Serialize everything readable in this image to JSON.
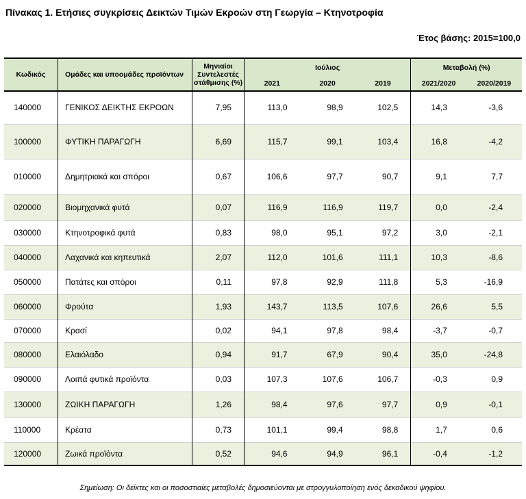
{
  "title": "Πίνακας 1. Ετήσιες συγκρίσεις Δεικτών Τιμών Εκροών στη Γεωργία – Κτηνοτροφία",
  "base_year": "Έτος βάσης: 2015=100,0",
  "columns": {
    "code": "Κωδικός",
    "groups": "Ομάδες και υποομάδες προϊόντων",
    "weights": "Μηνιαίοι Συντελεστές στάθμισης (%)",
    "july": "Ιούλιος",
    "change": "Μεταβολή (%)",
    "y2021": "2021",
    "y2020": "2020",
    "y2019": "2019",
    "c2021_2020": "2021/2020",
    "c2020_2019": "2020/2019"
  },
  "rows": [
    {
      "code": "140000",
      "name": "ΓΕΝΙΚΟΣ ΔΕΙΚΤΗΣ ΕΚΡΟΩΝ",
      "weight": "7,95",
      "y2021": "113,0",
      "y2020": "98,9",
      "y2019": "102,5",
      "chg1": "14,3",
      "chg2": "-3,6"
    },
    {
      "code": "100000",
      "name": "ΦΥΤΙΚΗ ΠΑΡΑΓΩΓΗ",
      "weight": "6,69",
      "y2021": "115,7",
      "y2020": "99,1",
      "y2019": "103,4",
      "chg1": "16,8",
      "chg2": "-4,2"
    },
    {
      "code": "010000",
      "name": "Δημητριακά και σπόροι",
      "weight": "0,67",
      "y2021": "106,6",
      "y2020": "97,7",
      "y2019": "90,7",
      "chg1": "9,1",
      "chg2": "7,7"
    },
    {
      "code": "020000",
      "name": "Βιομηχανικά φυτά",
      "weight": "0,07",
      "y2021": "116,9",
      "y2020": "116,9",
      "y2019": "119,7",
      "chg1": "0,0",
      "chg2": "-2,4"
    },
    {
      "code": "030000",
      "name": "Κτηνοτροφικά φυτά",
      "weight": "0,83",
      "y2021": "98,0",
      "y2020": "95,1",
      "y2019": "97,2",
      "chg1": "3,0",
      "chg2": "-2,1"
    },
    {
      "code": "040000",
      "name": "Λαχανικά και κηπευτικά",
      "weight": "2,07",
      "y2021": "112,0",
      "y2020": "101,6",
      "y2019": "111,1",
      "chg1": "10,3",
      "chg2": "-8,6"
    },
    {
      "code": "050000",
      "name": "Πατάτες και σπόροι",
      "weight": "0,11",
      "y2021": "97,8",
      "y2020": "92,9",
      "y2019": "111,8",
      "chg1": "5,3",
      "chg2": "-16,9"
    },
    {
      "code": "060000",
      "name": "Φρούτα",
      "weight": "1,93",
      "y2021": "143,7",
      "y2020": "113,5",
      "y2019": "107,6",
      "chg1": "26,6",
      "chg2": "5,5"
    },
    {
      "code": "070000",
      "name": "Κρασί",
      "weight": "0,02",
      "y2021": "94,1",
      "y2020": "97,8",
      "y2019": "98,4",
      "chg1": "-3,7",
      "chg2": "-0,7"
    },
    {
      "code": "080000",
      "name": "Ελαιόλαδο",
      "weight": "0,94",
      "y2021": "91,7",
      "y2020": "67,9",
      "y2019": "90,4",
      "chg1": "35,0",
      "chg2": "-24,8"
    },
    {
      "code": "090000",
      "name": "Λοιπά φυτικά προϊόντα",
      "weight": "0,03",
      "y2021": "107,3",
      "y2020": "107,6",
      "y2019": "106,7",
      "chg1": "-0,3",
      "chg2": "0,9"
    },
    {
      "code": "130000",
      "name": "ΖΩΙΚΗ ΠΑΡΑΓΩΓΗ",
      "weight": "1,26",
      "y2021": "98,4",
      "y2020": "97,6",
      "y2019": "97,7",
      "chg1": "0,9",
      "chg2": "-0,1"
    },
    {
      "code": "110000",
      "name": "Κρέατα",
      "weight": "0,73",
      "y2021": "101,1",
      "y2020": "99,4",
      "y2019": "98,8",
      "chg1": "1,7",
      "chg2": "0,6"
    },
    {
      "code": "120000",
      "name": "Ζωικά προϊόντα",
      "weight": "0,52",
      "y2021": "94,6",
      "y2020": "94,9",
      "y2019": "96,1",
      "chg1": "-0,4",
      "chg2": "-1,2"
    }
  ],
  "note": "Σημείωση: Οι δείκτες και οι ποσοστιαίες μεταβολές δημοσιεύονται με στρογγυλοποίηση ενός δεκαδικού ψηφίου.",
  "colors": {
    "header_fill": "#d9e8cb",
    "band_fill": "#ebf1de"
  }
}
